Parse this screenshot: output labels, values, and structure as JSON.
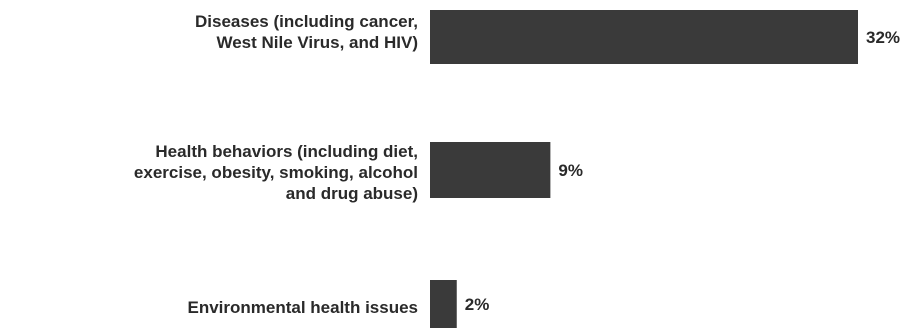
{
  "chart_data": {
    "type": "bar",
    "orientation": "horizontal",
    "categories": [
      [
        "Diseases (including cancer,",
        "West Nile Virus, and HIV)"
      ],
      [
        "Health behaviors (including diet,",
        "exercise, obesity, smoking, alcohol",
        "and drug abuse)"
      ],
      [
        "Environmental health issues"
      ]
    ],
    "values": [
      32,
      9,
      2
    ],
    "value_labels": [
      "32%",
      "9%",
      "2%"
    ],
    "unit": "%",
    "xlim": [
      0,
      32
    ],
    "bar_color": "#3a3a3a",
    "label_color": "#2a2a2a",
    "grid": false,
    "legend": "none"
  }
}
